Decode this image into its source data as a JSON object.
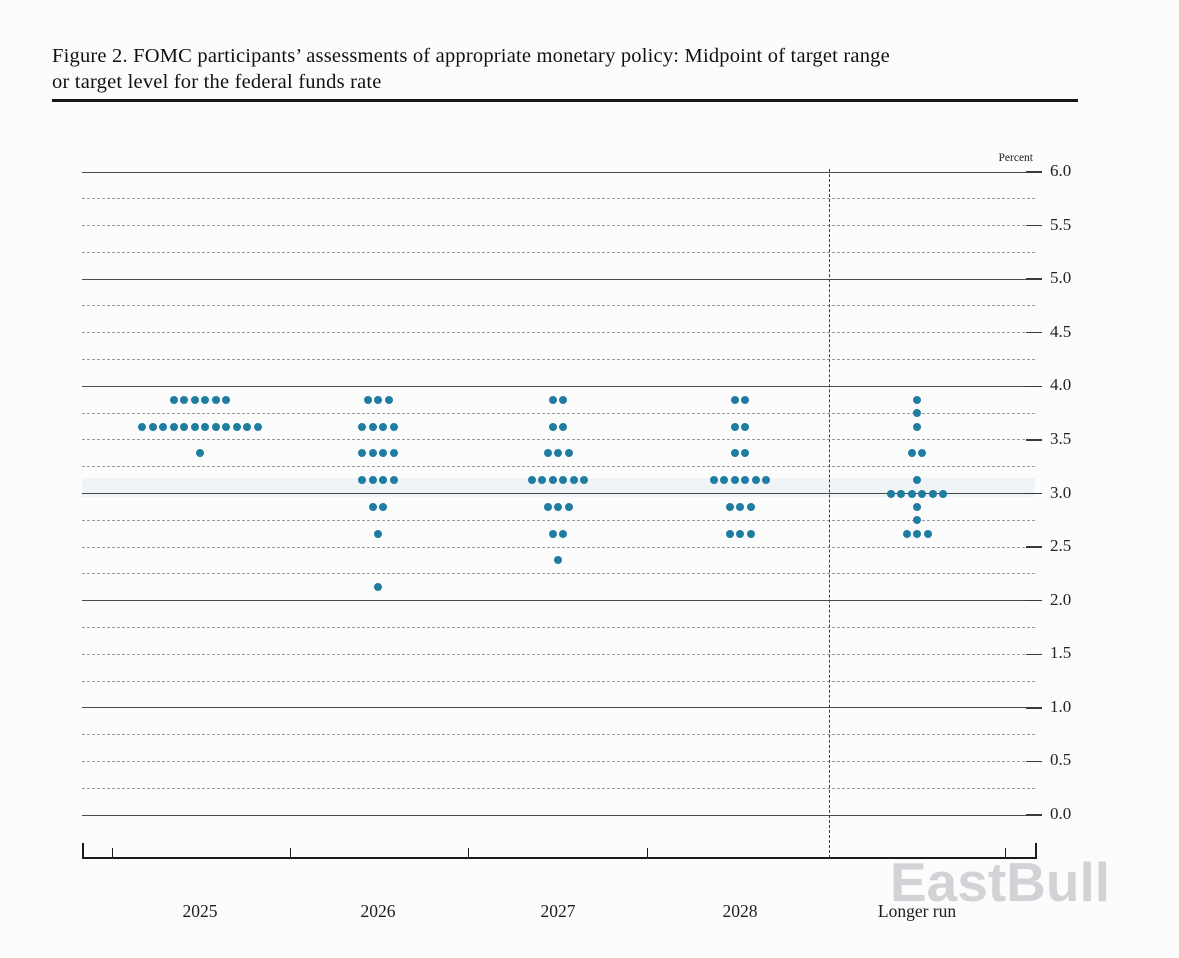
{
  "page": {
    "title_line1": "Figure 2. FOMC participants’ assessments of appropriate monetary policy: Midpoint of target range",
    "title_line2": "or target level for the federal funds rate",
    "watermark": "EastBull"
  },
  "chart_data": {
    "type": "scatter",
    "subtype": "fomc-dot-plot",
    "title": "Figure 2. FOMC participants’ assessments of appropriate monetary policy: Midpoint of target range or target level for the federal funds rate",
    "unit_label": "Percent",
    "categories": [
      "2025",
      "2026",
      "2027",
      "2028",
      "Longer run"
    ],
    "separator_after_category": "2028",
    "dot_color": "#1f7da1",
    "grid": {
      "minor_step": 0.25,
      "major_step": 1.0,
      "minor_style": "dashed",
      "major_style": "solid"
    },
    "y_axis": {
      "min": 0.0,
      "max": 6.0,
      "ticks": [
        {
          "value": 6.0,
          "label": "6.0"
        },
        {
          "value": 5.5,
          "label": "5.5"
        },
        {
          "value": 5.0,
          "label": "5.0"
        },
        {
          "value": 4.5,
          "label": "4.5"
        },
        {
          "value": 4.0,
          "label": "4.0"
        },
        {
          "value": 3.5,
          "label": "3.5"
        },
        {
          "value": 3.0,
          "label": "3.0"
        },
        {
          "value": 2.5,
          "label": "2.5"
        },
        {
          "value": 2.0,
          "label": "2.0"
        },
        {
          "value": 1.5,
          "label": "1.5"
        },
        {
          "value": 1.0,
          "label": "1.0"
        },
        {
          "value": 0.5,
          "label": "0.5"
        },
        {
          "value": 0.0,
          "label": "0.0"
        }
      ]
    },
    "series": [
      {
        "category": "2025",
        "dots": [
          {
            "rate": 3.875,
            "count": 6
          },
          {
            "rate": 3.625,
            "count": 12
          },
          {
            "rate": 3.375,
            "count": 1
          }
        ]
      },
      {
        "category": "2026",
        "dots": [
          {
            "rate": 3.875,
            "count": 3
          },
          {
            "rate": 3.625,
            "count": 4
          },
          {
            "rate": 3.375,
            "count": 4
          },
          {
            "rate": 3.125,
            "count": 4
          },
          {
            "rate": 2.875,
            "count": 2
          },
          {
            "rate": 2.625,
            "count": 1
          },
          {
            "rate": 2.125,
            "count": 1
          }
        ]
      },
      {
        "category": "2027",
        "dots": [
          {
            "rate": 3.875,
            "count": 2
          },
          {
            "rate": 3.625,
            "count": 2
          },
          {
            "rate": 3.375,
            "count": 3
          },
          {
            "rate": 3.125,
            "count": 6
          },
          {
            "rate": 2.875,
            "count": 3
          },
          {
            "rate": 2.625,
            "count": 2
          },
          {
            "rate": 2.375,
            "count": 1
          }
        ]
      },
      {
        "category": "2028",
        "dots": [
          {
            "rate": 3.875,
            "count": 2
          },
          {
            "rate": 3.625,
            "count": 2
          },
          {
            "rate": 3.375,
            "count": 2
          },
          {
            "rate": 3.125,
            "count": 6
          },
          {
            "rate": 2.875,
            "count": 3
          },
          {
            "rate": 2.625,
            "count": 3
          }
        ]
      },
      {
        "category": "Longer run",
        "dots": [
          {
            "rate": 3.875,
            "count": 1
          },
          {
            "rate": 3.75,
            "count": 1
          },
          {
            "rate": 3.625,
            "count": 1
          },
          {
            "rate": 3.375,
            "count": 2
          },
          {
            "rate": 3.125,
            "count": 1
          },
          {
            "rate": 3.0,
            "count": 6
          },
          {
            "rate": 2.875,
            "count": 1
          },
          {
            "rate": 2.75,
            "count": 1
          },
          {
            "rate": 2.625,
            "count": 3
          }
        ]
      }
    ]
  }
}
